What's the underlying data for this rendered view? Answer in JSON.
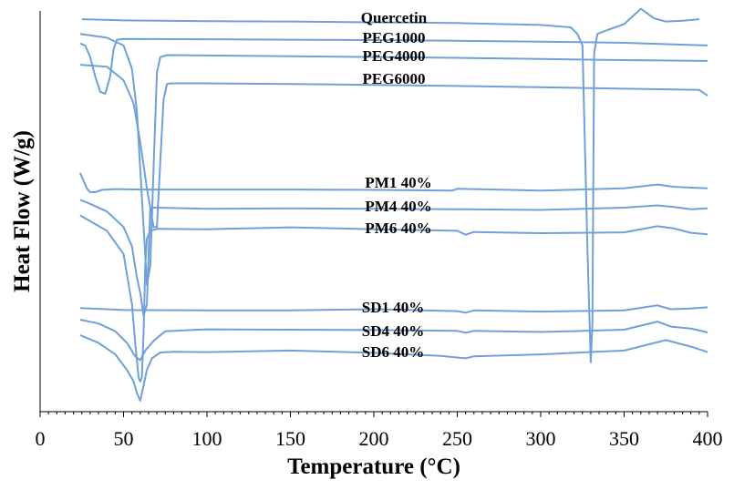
{
  "chart_data": {
    "type": "line",
    "title": "",
    "xlabel": "Temperature (°C)",
    "ylabel": "Heat Flow (W/g)",
    "xlim": [
      0,
      400
    ],
    "ylim": [
      -100,
      0
    ],
    "x_ticks": [
      "0",
      "50",
      "100",
      "150",
      "200",
      "250",
      "300",
      "350",
      "400"
    ],
    "y_ticks_labeled": false,
    "grid": false,
    "legend": "none (curves labeled inline)",
    "line_color": "#6fa0d8",
    "series": [
      {
        "name": "Quercetin",
        "x": [
          25,
          50,
          100,
          150,
          200,
          250,
          300,
          318,
          322,
          325,
          328,
          330,
          331,
          332,
          334,
          340,
          350,
          360,
          368,
          375,
          385,
          395
        ],
        "y": [
          -1.2,
          -1.5,
          -1.7,
          -1.8,
          -2.0,
          -2.2,
          -2.7,
          -3.3,
          -5.0,
          -8.0,
          -60.0,
          -90.0,
          -80.0,
          -10.0,
          -5.0,
          -4.0,
          -2.5,
          1.5,
          -1.0,
          -1.8,
          -1.6,
          -1.2
        ]
      },
      {
        "name": "PEG1000",
        "x": [
          24,
          27,
          30,
          33,
          36,
          39,
          42,
          44,
          46,
          50,
          100,
          150,
          200,
          250,
          300,
          350,
          400
        ],
        "y": [
          -7.5,
          -8.0,
          -11.0,
          -16.0,
          -20.0,
          -20.5,
          -16.0,
          -9.0,
          -6.5,
          -6.3,
          -6.4,
          -6.5,
          -6.6,
          -6.8,
          -7.0,
          -7.3,
          -8.0
        ]
      },
      {
        "name": "PEG4000",
        "x": [
          24,
          40,
          50,
          55,
          58,
          60,
          62,
          64,
          66,
          68,
          70,
          72,
          76,
          100,
          150,
          200,
          250,
          300,
          350,
          400
        ],
        "y": [
          -5.0,
          -6.0,
          -8.0,
          -14.0,
          -25.0,
          -40.0,
          -55.0,
          -70.0,
          -65.0,
          -40.0,
          -15.0,
          -11.0,
          -10.5,
          -10.6,
          -10.8,
          -11.0,
          -11.2,
          -11.5,
          -11.8,
          -12.0
        ]
      },
      {
        "name": "PEG6000",
        "x": [
          24,
          40,
          50,
          56,
          60,
          64,
          66,
          68,
          70,
          72,
          74,
          76,
          78,
          100,
          150,
          200,
          250,
          300,
          350,
          395,
          400
        ],
        "y": [
          -13.0,
          -13.5,
          -17.0,
          -23.0,
          -33.0,
          -45.0,
          -50.0,
          -55.0,
          -55.0,
          -38.0,
          -22.0,
          -18.0,
          -17.8,
          -17.8,
          -18.0,
          -18.2,
          -18.5,
          -18.8,
          -19.2,
          -19.5,
          -21.0
        ]
      },
      {
        "name": "PM1 40%",
        "x": [
          24,
          26,
          28,
          30,
          33,
          37,
          45,
          60,
          100,
          150,
          200,
          247,
          250,
          300,
          350,
          370,
          380,
          400
        ],
        "y": [
          -41.0,
          -43.0,
          -45.0,
          -46.0,
          -46.0,
          -45.4,
          -45.2,
          -45.3,
          -45.3,
          -45.3,
          -45.4,
          -45.6,
          -45.1,
          -45.6,
          -45.0,
          -44.0,
          -44.6,
          -45.0
        ]
      },
      {
        "name": "PM4 40%",
        "x": [
          24,
          30,
          40,
          50,
          55,
          58,
          60,
          62,
          64,
          66,
          70,
          100,
          150,
          200,
          250,
          300,
          350,
          370,
          380,
          390,
          400
        ],
        "y": [
          -48.0,
          -49.0,
          -51.0,
          -55.0,
          -60.0,
          -68.0,
          -72.0,
          -78.0,
          -75.0,
          -50.0,
          -50.0,
          -50.3,
          -50.2,
          -50.3,
          -50.4,
          -50.6,
          -50.0,
          -49.4,
          -49.8,
          -50.4,
          -50.2
        ]
      },
      {
        "name": "PM6 40%",
        "x": [
          24,
          40,
          50,
          55,
          57,
          59,
          60,
          61,
          62,
          63,
          64,
          66,
          70,
          100,
          150,
          200,
          250,
          255,
          260,
          300,
          350,
          370,
          380,
          390,
          400
        ],
        "y": [
          -52.0,
          -56.0,
          -62.0,
          -75.0,
          -85.0,
          -94.0,
          -95.0,
          -94.0,
          -82.0,
          -65.0,
          -58.0,
          -56.0,
          -55.5,
          -55.6,
          -55.1,
          -55.6,
          -56.0,
          -57.0,
          -56.3,
          -56.6,
          -56.4,
          -54.8,
          -55.4,
          -56.5,
          -56.9
        ]
      },
      {
        "name": "SD1 40%",
        "x": [
          24,
          50,
          100,
          150,
          200,
          250,
          255,
          260,
          300,
          350,
          370,
          378,
          390,
          400
        ],
        "y": [
          -76.0,
          -76.5,
          -76.6,
          -76.6,
          -76.3,
          -76.8,
          -77.2,
          -76.6,
          -76.9,
          -76.6,
          -75.3,
          -76.3,
          -76.1,
          -75.8
        ]
      },
      {
        "name": "SD4 40%",
        "x": [
          24,
          35,
          45,
          52,
          57,
          60,
          63,
          68,
          75,
          90,
          100,
          150,
          200,
          250,
          255,
          260,
          300,
          350,
          370,
          378,
          390,
          400
        ],
        "y": [
          -79.0,
          -80.0,
          -82.0,
          -85.0,
          -88.5,
          -89.5,
          -87.0,
          -84.5,
          -82.0,
          -81.7,
          -81.5,
          -81.6,
          -81.7,
          -81.9,
          -82.4,
          -81.9,
          -82.2,
          -81.6,
          -79.5,
          -80.8,
          -81.3,
          -82.3
        ]
      },
      {
        "name": "SD6 40%",
        "x": [
          24,
          35,
          45,
          52,
          56,
          58,
          60,
          62,
          64,
          67,
          72,
          80,
          100,
          150,
          200,
          240,
          255,
          260,
          300,
          350,
          375,
          390,
          400
        ],
        "y": [
          -83.0,
          -85.0,
          -88.0,
          -92.0,
          -95.0,
          -98.0,
          -100.0,
          -96.0,
          -92.0,
          -89.0,
          -87.5,
          -87.3,
          -87.4,
          -87.0,
          -87.6,
          -88.4,
          -89.0,
          -88.5,
          -88.0,
          -87.0,
          -84.3,
          -86.0,
          -87.4
        ]
      }
    ],
    "curve_labels": [
      "Quercetin",
      "PEG1000",
      "PEG4000",
      "PEG6000",
      "PM1 40%",
      "PM4 40%",
      "PM6 40%",
      "SD1 40%",
      "SD4 40%",
      "SD6 40%"
    ]
  }
}
